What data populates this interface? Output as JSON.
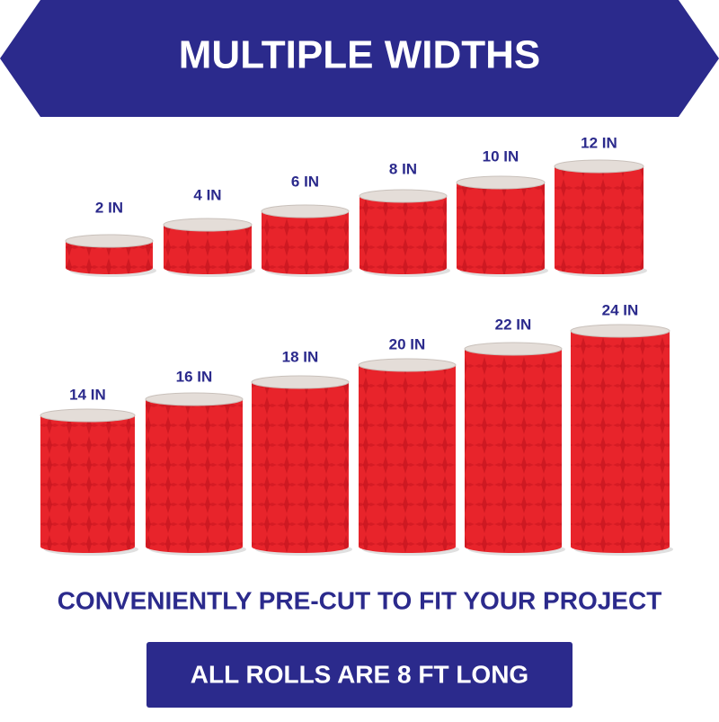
{
  "header": {
    "title": "MULTIPLE WIDTHS"
  },
  "rolls": [
    "2 IN",
    "4 IN",
    "6 IN",
    "8 IN",
    "10 IN",
    "12 IN",
    "14 IN",
    "16 IN",
    "18 IN",
    "20 IN",
    "22 IN",
    "24 IN"
  ],
  "tagline": "CONVENIENTLY PRE-CUT TO FIT YOUR PROJECT",
  "footer": "ALL ROLLS ARE 8 FT LONG"
}
